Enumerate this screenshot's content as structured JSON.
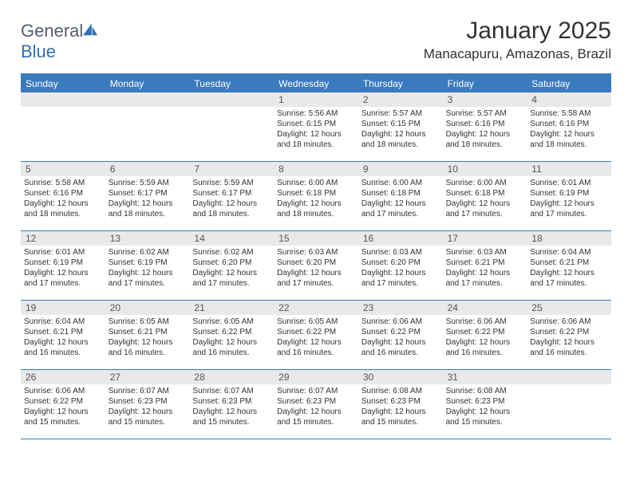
{
  "logo": {
    "text1": "General",
    "text2": "Blue"
  },
  "title": "January 2025",
  "location": "Manacapuru, Amazonas, Brazil",
  "colors": {
    "header_bg": "#3a7abf",
    "header_text": "#ffffff",
    "daynum_bg": "#e9e9e9",
    "border": "#3a7abf",
    "logo_gray": "#555e6c",
    "logo_blue": "#2f6fb3"
  },
  "day_names": [
    "Sunday",
    "Monday",
    "Tuesday",
    "Wednesday",
    "Thursday",
    "Friday",
    "Saturday"
  ],
  "weeks": [
    [
      null,
      null,
      null,
      {
        "n": "1",
        "sr": "5:56 AM",
        "ss": "6:15 PM",
        "dl": "12 hours and 18 minutes."
      },
      {
        "n": "2",
        "sr": "5:57 AM",
        "ss": "6:15 PM",
        "dl": "12 hours and 18 minutes."
      },
      {
        "n": "3",
        "sr": "5:57 AM",
        "ss": "6:16 PM",
        "dl": "12 hours and 18 minutes."
      },
      {
        "n": "4",
        "sr": "5:58 AM",
        "ss": "6:16 PM",
        "dl": "12 hours and 18 minutes."
      }
    ],
    [
      {
        "n": "5",
        "sr": "5:58 AM",
        "ss": "6:16 PM",
        "dl": "12 hours and 18 minutes."
      },
      {
        "n": "6",
        "sr": "5:59 AM",
        "ss": "6:17 PM",
        "dl": "12 hours and 18 minutes."
      },
      {
        "n": "7",
        "sr": "5:59 AM",
        "ss": "6:17 PM",
        "dl": "12 hours and 18 minutes."
      },
      {
        "n": "8",
        "sr": "6:00 AM",
        "ss": "6:18 PM",
        "dl": "12 hours and 18 minutes."
      },
      {
        "n": "9",
        "sr": "6:00 AM",
        "ss": "6:18 PM",
        "dl": "12 hours and 17 minutes."
      },
      {
        "n": "10",
        "sr": "6:00 AM",
        "ss": "6:18 PM",
        "dl": "12 hours and 17 minutes."
      },
      {
        "n": "11",
        "sr": "6:01 AM",
        "ss": "6:19 PM",
        "dl": "12 hours and 17 minutes."
      }
    ],
    [
      {
        "n": "12",
        "sr": "6:01 AM",
        "ss": "6:19 PM",
        "dl": "12 hours and 17 minutes."
      },
      {
        "n": "13",
        "sr": "6:02 AM",
        "ss": "6:19 PM",
        "dl": "12 hours and 17 minutes."
      },
      {
        "n": "14",
        "sr": "6:02 AM",
        "ss": "6:20 PM",
        "dl": "12 hours and 17 minutes."
      },
      {
        "n": "15",
        "sr": "6:03 AM",
        "ss": "6:20 PM",
        "dl": "12 hours and 17 minutes."
      },
      {
        "n": "16",
        "sr": "6:03 AM",
        "ss": "6:20 PM",
        "dl": "12 hours and 17 minutes."
      },
      {
        "n": "17",
        "sr": "6:03 AM",
        "ss": "6:21 PM",
        "dl": "12 hours and 17 minutes."
      },
      {
        "n": "18",
        "sr": "6:04 AM",
        "ss": "6:21 PM",
        "dl": "12 hours and 17 minutes."
      }
    ],
    [
      {
        "n": "19",
        "sr": "6:04 AM",
        "ss": "6:21 PM",
        "dl": "12 hours and 16 minutes."
      },
      {
        "n": "20",
        "sr": "6:05 AM",
        "ss": "6:21 PM",
        "dl": "12 hours and 16 minutes."
      },
      {
        "n": "21",
        "sr": "6:05 AM",
        "ss": "6:22 PM",
        "dl": "12 hours and 16 minutes."
      },
      {
        "n": "22",
        "sr": "6:05 AM",
        "ss": "6:22 PM",
        "dl": "12 hours and 16 minutes."
      },
      {
        "n": "23",
        "sr": "6:06 AM",
        "ss": "6:22 PM",
        "dl": "12 hours and 16 minutes."
      },
      {
        "n": "24",
        "sr": "6:06 AM",
        "ss": "6:22 PM",
        "dl": "12 hours and 16 minutes."
      },
      {
        "n": "25",
        "sr": "6:06 AM",
        "ss": "6:22 PM",
        "dl": "12 hours and 16 minutes."
      }
    ],
    [
      {
        "n": "26",
        "sr": "6:06 AM",
        "ss": "6:22 PM",
        "dl": "12 hours and 15 minutes."
      },
      {
        "n": "27",
        "sr": "6:07 AM",
        "ss": "6:23 PM",
        "dl": "12 hours and 15 minutes."
      },
      {
        "n": "28",
        "sr": "6:07 AM",
        "ss": "6:23 PM",
        "dl": "12 hours and 15 minutes."
      },
      {
        "n": "29",
        "sr": "6:07 AM",
        "ss": "6:23 PM",
        "dl": "12 hours and 15 minutes."
      },
      {
        "n": "30",
        "sr": "6:08 AM",
        "ss": "6:23 PM",
        "dl": "12 hours and 15 minutes."
      },
      {
        "n": "31",
        "sr": "6:08 AM",
        "ss": "6:23 PM",
        "dl": "12 hours and 15 minutes."
      },
      null
    ]
  ],
  "labels": {
    "sunrise": "Sunrise:",
    "sunset": "Sunset:",
    "daylight": "Daylight:"
  }
}
